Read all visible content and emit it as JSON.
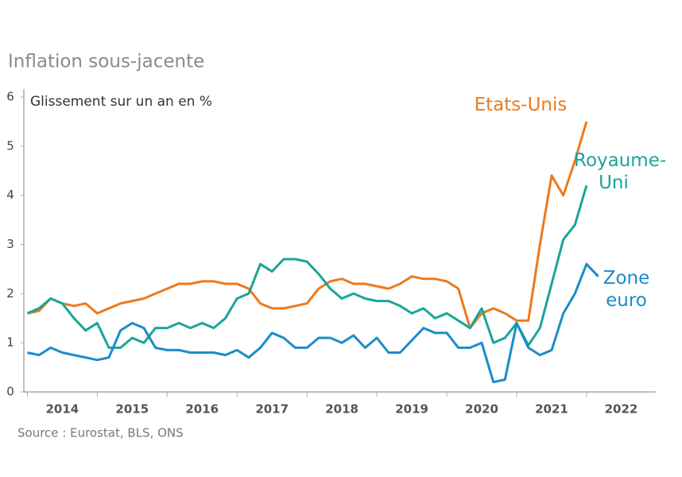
{
  "chart_data": {
    "type": "line",
    "title": "Inflation sous-jacente",
    "subtitle": "Glissement sur un an en %",
    "source": "Source :  Eurostat, BLS, ONS",
    "x": [
      2014,
      2014.167,
      2014.333,
      2014.5,
      2014.667,
      2014.833,
      2015,
      2015.167,
      2015.333,
      2015.5,
      2015.667,
      2015.833,
      2016,
      2016.167,
      2016.333,
      2016.5,
      2016.667,
      2016.833,
      2017,
      2017.167,
      2017.333,
      2017.5,
      2017.667,
      2017.833,
      2018,
      2018.167,
      2018.333,
      2018.5,
      2018.667,
      2018.833,
      2019,
      2019.167,
      2019.333,
      2019.5,
      2019.667,
      2019.833,
      2020,
      2020.167,
      2020.333,
      2020.5,
      2020.667,
      2020.833,
      2021,
      2021.167,
      2021.333,
      2021.5,
      2021.667,
      2021.833,
      2022,
      2022.167
    ],
    "series": [
      {
        "name": "Etats-Unis",
        "color": "#ec7a1c",
        "values": [
          1.6,
          1.65,
          1.9,
          1.8,
          1.75,
          1.8,
          1.6,
          1.7,
          1.8,
          1.85,
          1.9,
          2.0,
          2.1,
          2.2,
          2.2,
          2.25,
          2.25,
          2.2,
          2.2,
          2.1,
          1.8,
          1.7,
          1.7,
          1.75,
          1.8,
          2.1,
          2.25,
          2.3,
          2.2,
          2.2,
          2.15,
          2.1,
          2.2,
          2.35,
          2.3,
          2.3,
          2.25,
          2.1,
          1.3,
          1.6,
          1.7,
          1.6,
          1.45,
          1.45,
          3.0,
          4.4,
          4.0,
          4.7,
          5.5,
          null
        ]
      },
      {
        "name": "Royaume-Uni",
        "color": "#1aa59a",
        "values": [
          1.6,
          1.7,
          1.9,
          1.8,
          1.5,
          1.25,
          1.4,
          0.9,
          0.9,
          1.1,
          1.0,
          1.3,
          1.3,
          1.4,
          1.3,
          1.4,
          1.3,
          1.5,
          1.9,
          2.0,
          2.6,
          2.45,
          2.7,
          2.7,
          2.65,
          2.4,
          2.1,
          1.9,
          2.0,
          1.9,
          1.85,
          1.85,
          1.75,
          1.6,
          1.7,
          1.5,
          1.6,
          1.45,
          1.3,
          1.7,
          1.0,
          1.1,
          1.4,
          0.95,
          1.3,
          2.2,
          3.1,
          3.4,
          4.2,
          null
        ]
      },
      {
        "name": "Zone euro",
        "color": "#1a8ccc",
        "values": [
          0.8,
          0.75,
          0.9,
          0.8,
          0.75,
          0.7,
          0.65,
          0.7,
          1.25,
          1.4,
          1.3,
          0.9,
          0.85,
          0.85,
          0.8,
          0.8,
          0.8,
          0.75,
          0.85,
          0.7,
          0.9,
          1.2,
          1.1,
          0.9,
          0.9,
          1.1,
          1.1,
          1.0,
          1.15,
          0.9,
          1.1,
          0.8,
          0.8,
          1.05,
          1.3,
          1.2,
          1.2,
          0.9,
          0.9,
          1.0,
          0.2,
          0.25,
          1.4,
          0.9,
          0.75,
          0.85,
          1.6,
          2.0,
          2.6,
          2.35
        ]
      }
    ],
    "xlim": [
      2013.95,
      2022.99
    ],
    "xticks": [
      2014,
      2015,
      2016,
      2017,
      2018,
      2019,
      2020,
      2021,
      2022
    ],
    "ylim": [
      0,
      6
    ],
    "yticks": [
      0,
      1,
      2,
      3,
      4,
      5,
      6
    ],
    "grid": false
  }
}
